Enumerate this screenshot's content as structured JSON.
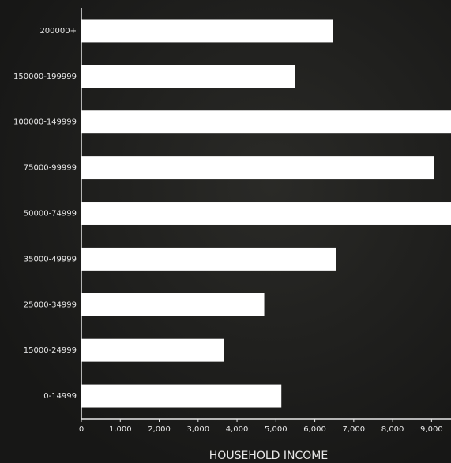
{
  "chart_data": {
    "type": "barh",
    "x_label": "HOUSEHOLD INCOME",
    "categories": [
      "200000+",
      "150000-199999",
      "100000-149999",
      "75000-99999",
      "50000-74999",
      "35000-49999",
      "25000-34999",
      "15000-24999",
      "0-14999"
    ],
    "values": [
      6460,
      5490,
      9500,
      9070,
      9500,
      6540,
      4700,
      3660,
      5140
    ],
    "color": "#ffffff",
    "xlim": [
      0,
      9500
    ],
    "xticks": [
      0,
      {
        "value": 1000,
        "label": "1,000"
      },
      {
        "value": 2000,
        "label": "2,000"
      },
      {
        "value": 3000,
        "label": "3,000"
      },
      {
        "value": 4000,
        "label": "4,000"
      },
      {
        "value": 5000,
        "label": "5,000"
      },
      {
        "value": 6000,
        "label": "6,000"
      },
      {
        "value": 7000,
        "label": "7,000"
      },
      {
        "value": 8000,
        "label": "8,000"
      },
      {
        "value": 9000,
        "label": "9,000"
      }
    ],
    "grid": false
  }
}
